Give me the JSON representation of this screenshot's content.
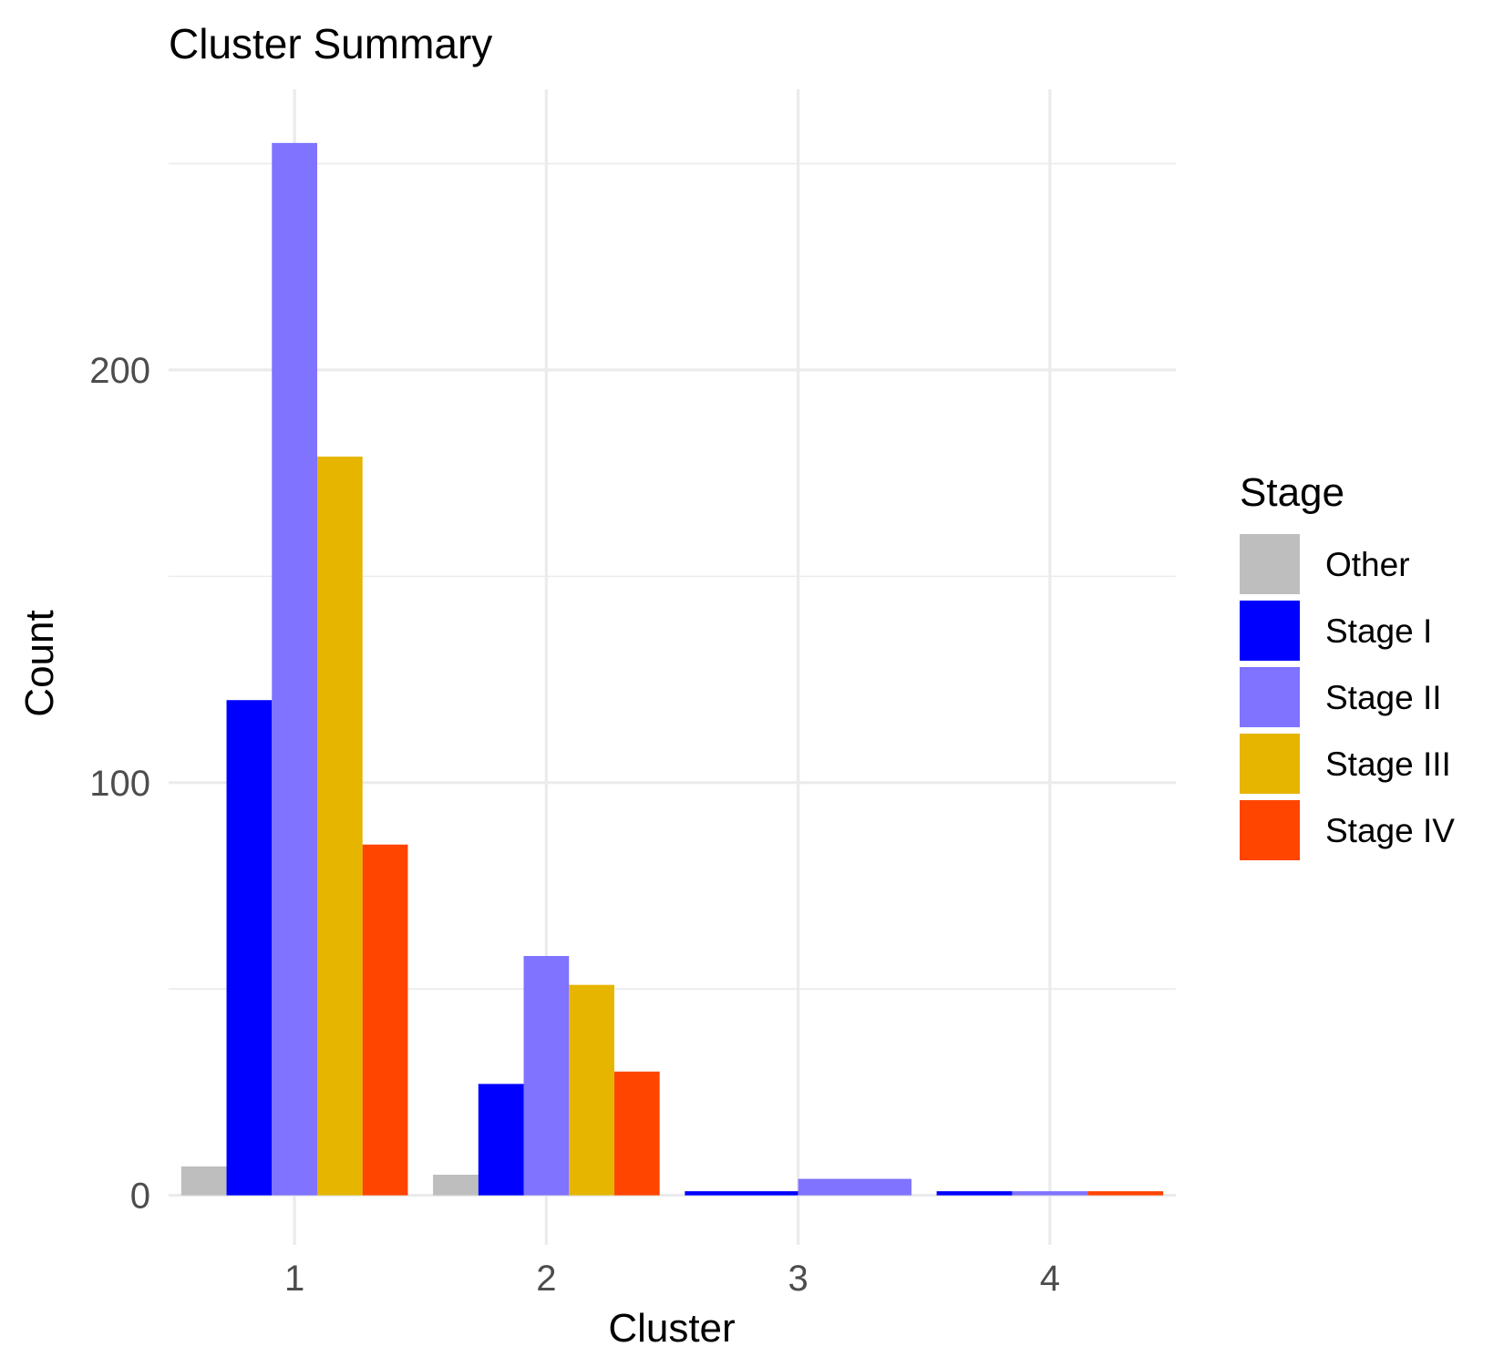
{
  "chart_data": {
    "type": "bar",
    "title": "Cluster Summary",
    "xlabel": "Cluster",
    "ylabel": "Count",
    "categories": [
      "1",
      "2",
      "3",
      "4"
    ],
    "series": [
      {
        "name": "Other",
        "color": "#BEBEBE",
        "values": [
          7,
          5,
          null,
          null
        ]
      },
      {
        "name": "Stage I",
        "color": "#0000FF",
        "values": [
          120,
          27,
          1,
          1
        ]
      },
      {
        "name": "Stage II",
        "color": "#7F73FF",
        "values": [
          255,
          58,
          4,
          1
        ]
      },
      {
        "name": "Stage III",
        "color": "#E6B500",
        "values": [
          179,
          51,
          null,
          null
        ]
      },
      {
        "name": "Stage IV",
        "color": "#FF4500",
        "values": [
          85,
          30,
          null,
          1
        ]
      }
    ],
    "ylim": [
      -12,
      268
    ],
    "yticks": [
      0,
      100,
      200
    ],
    "grid": true,
    "legend": {
      "title": "Stage",
      "position": "right"
    }
  }
}
